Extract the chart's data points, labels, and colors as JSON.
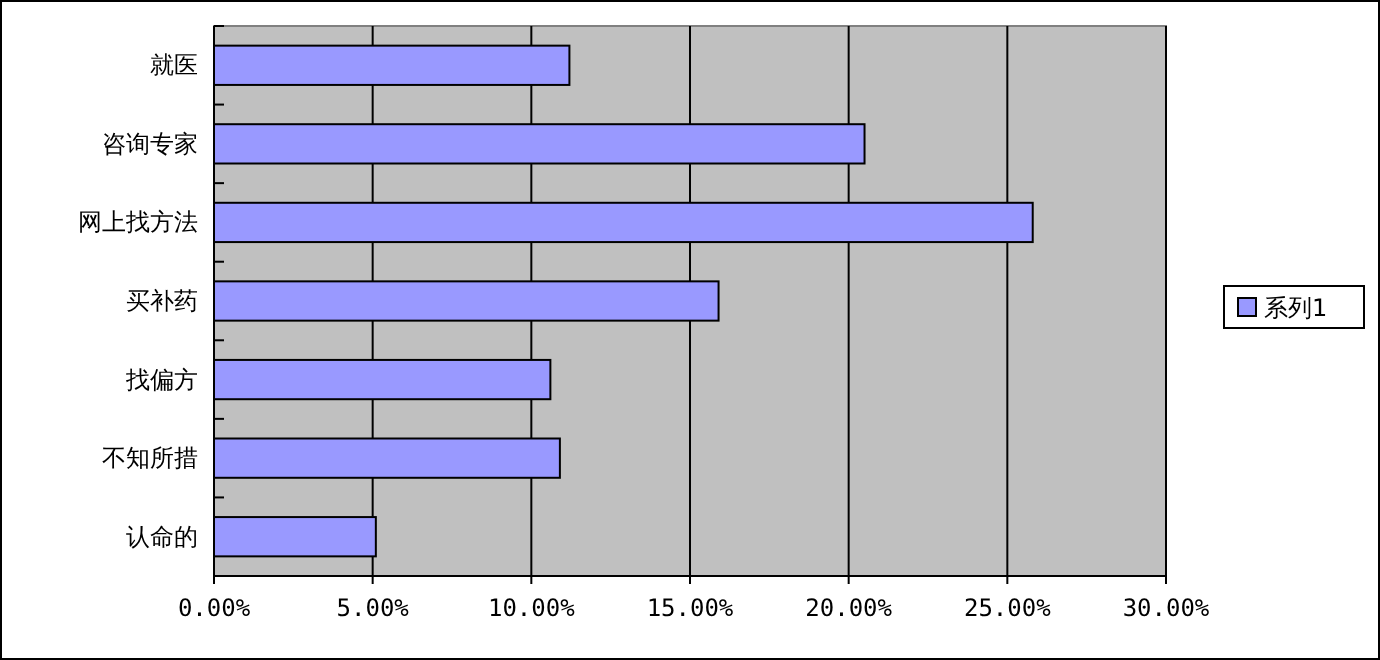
{
  "chart_data": {
    "type": "bar",
    "orientation": "horizontal",
    "categories": [
      "就医",
      "咨询专家",
      "网上找方法",
      "买补药",
      "找偏方",
      "不知所措",
      "认命的"
    ],
    "series": [
      {
        "name": "系列1",
        "color": "#9999ff",
        "values": [
          11.2,
          20.5,
          25.8,
          15.9,
          10.6,
          10.9,
          5.1
        ]
      }
    ],
    "xlim": [
      0,
      30
    ],
    "xticks": [
      {
        "value": 0,
        "label": "0.00%"
      },
      {
        "value": 5,
        "label": "5.00%"
      },
      {
        "value": 10,
        "label": "10.00%"
      },
      {
        "value": 15,
        "label": "15.00%"
      },
      {
        "value": 20,
        "label": "20.00%"
      },
      {
        "value": 25,
        "label": "25.00%"
      },
      {
        "value": 30,
        "label": "30.00%"
      }
    ],
    "grid": "x",
    "legend": "right"
  }
}
